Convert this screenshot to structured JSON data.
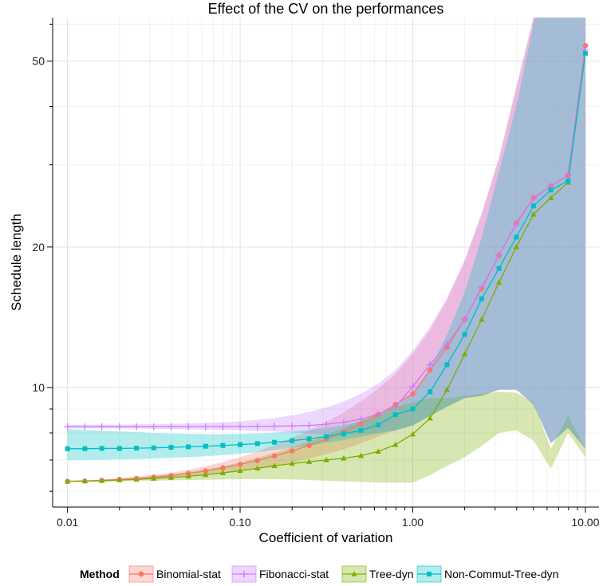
{
  "chart_data": {
    "type": "line",
    "title": "Effect of the CV on the performances",
    "xlabel": "Coefficient of variation",
    "ylabel": "Schedule length",
    "xscale": "log",
    "yscale": "log",
    "xlim": [
      0.0082,
      12.0
    ],
    "ylim": [
      5.55,
      62.0
    ],
    "x_ticks": [
      0.01,
      0.1,
      1.0,
      10.0
    ],
    "x_tick_labels": [
      "0.01",
      "0.10",
      "1.00",
      "10.00"
    ],
    "y_ticks": [
      10,
      20,
      50
    ],
    "y_tick_labels": [
      "10",
      "20",
      "50"
    ],
    "grid": true,
    "legend": {
      "title": "Method",
      "placement": "bottom"
    },
    "x": [
      0.01,
      0.0126,
      0.0158,
      0.02,
      0.0251,
      0.0316,
      0.0398,
      0.0501,
      0.0631,
      0.0794,
      0.1,
      0.126,
      0.158,
      0.2,
      0.251,
      0.316,
      0.398,
      0.501,
      0.631,
      0.794,
      1.0,
      1.26,
      1.58,
      2.0,
      2.51,
      3.16,
      3.98,
      5.01,
      6.31,
      7.94,
      10.0
    ],
    "series": [
      {
        "name": "Binomial-stat",
        "color": "#F8766D",
        "marker": "circle",
        "values": [
          6.3,
          6.31,
          6.33,
          6.36,
          6.39,
          6.43,
          6.48,
          6.55,
          6.63,
          6.73,
          6.85,
          6.98,
          7.14,
          7.32,
          7.52,
          7.76,
          8.04,
          8.37,
          8.76,
          9.2,
          9.7,
          10.9,
          12.2,
          14.0,
          16.3,
          19.2,
          22.5,
          25.5,
          27.0,
          28.5,
          54.0
        ],
        "lower": [
          6.28,
          6.29,
          6.3,
          6.32,
          6.34,
          6.37,
          6.4,
          6.44,
          6.49,
          6.55,
          6.62,
          6.7,
          6.8,
          6.92,
          7.05,
          7.2,
          7.38,
          7.6,
          7.85,
          8.1,
          8.3,
          8.7,
          9.1,
          9.5,
          9.6,
          9.9,
          9.9,
          9.2,
          7.6,
          8.2,
          7.4
        ],
        "upper": [
          6.33,
          6.34,
          6.36,
          6.4,
          6.45,
          6.5,
          6.57,
          6.67,
          6.79,
          6.93,
          7.1,
          7.3,
          7.53,
          7.8,
          8.1,
          8.45,
          8.85,
          9.35,
          9.95,
          10.7,
          11.8,
          13.3,
          15.4,
          18.6,
          23.5,
          31.0,
          44.0,
          62.0,
          80.0,
          95.0,
          110.0
        ]
      },
      {
        "name": "Fibonacci-stat",
        "color": "#C77CFF",
        "marker": "plus",
        "values": [
          8.25,
          8.25,
          8.25,
          8.25,
          8.25,
          8.25,
          8.25,
          8.25,
          8.25,
          8.25,
          8.26,
          8.26,
          8.27,
          8.28,
          8.3,
          8.35,
          8.43,
          8.56,
          8.78,
          9.1,
          10.05,
          11.2,
          12.4,
          14.0,
          16.4,
          19.2,
          22.4,
          25.4,
          27.0,
          28.5,
          53.0
        ],
        "lower": [
          8.18,
          8.18,
          8.18,
          8.17,
          8.17,
          8.16,
          8.15,
          8.14,
          8.13,
          8.12,
          8.1,
          8.08,
          8.05,
          8.02,
          7.98,
          7.93,
          7.92,
          7.96,
          8.0,
          8.1,
          8.3,
          8.7,
          9.1,
          9.5,
          9.6,
          9.9,
          9.9,
          9.2,
          7.6,
          8.2,
          7.4
        ],
        "upper": [
          8.32,
          8.32,
          8.33,
          8.33,
          8.34,
          8.35,
          8.36,
          8.38,
          8.4,
          8.43,
          8.47,
          8.53,
          8.61,
          8.72,
          8.87,
          9.07,
          9.34,
          9.7,
          10.2,
          10.9,
          12.0,
          13.5,
          15.6,
          18.8,
          23.7,
          31.0,
          44.0,
          62.0,
          80.0,
          95.0,
          110.0
        ]
      },
      {
        "name": "Tree-dyn",
        "color": "#7CAE00",
        "marker": "triangle",
        "values": [
          6.3,
          6.31,
          6.32,
          6.34,
          6.36,
          6.39,
          6.42,
          6.46,
          6.51,
          6.57,
          6.64,
          6.72,
          6.8,
          6.88,
          6.94,
          7.0,
          7.06,
          7.15,
          7.3,
          7.55,
          7.95,
          8.6,
          9.9,
          11.8,
          14.0,
          16.8,
          20.0,
          23.5,
          25.5,
          27.5,
          52.0
        ],
        "lower": [
          6.28,
          6.28,
          6.29,
          6.3,
          6.31,
          6.32,
          6.33,
          6.34,
          6.35,
          6.36,
          6.37,
          6.37,
          6.37,
          6.36,
          6.34,
          6.32,
          6.3,
          6.28,
          6.26,
          6.26,
          6.26,
          6.5,
          6.8,
          7.1,
          7.5,
          8.0,
          8.1,
          7.7,
          6.7,
          8.0,
          7.1
        ],
        "upper": [
          6.32,
          6.33,
          6.35,
          6.38,
          6.42,
          6.47,
          6.53,
          6.6,
          6.69,
          6.79,
          6.92,
          7.07,
          7.25,
          7.45,
          7.67,
          7.92,
          8.2,
          8.5,
          8.8,
          9.1,
          9.3,
          9.5,
          9.5,
          9.6,
          9.7,
          9.8,
          9.75,
          9.3,
          7.4,
          8.7,
          7.4
        ]
      },
      {
        "name": "Non-Commut-Tree-dyn",
        "color": "#00BFC4",
        "marker": "square",
        "values": [
          7.4,
          7.4,
          7.41,
          7.41,
          7.42,
          7.43,
          7.45,
          7.47,
          7.49,
          7.52,
          7.55,
          7.59,
          7.64,
          7.7,
          7.77,
          7.86,
          7.96,
          8.1,
          8.32,
          8.75,
          9.0,
          9.8,
          11.2,
          13.0,
          15.5,
          18.0,
          21.0,
          24.5,
          26.5,
          27.7,
          52.0
        ],
        "lower": [
          7.0,
          7.0,
          7.01,
          7.02,
          7.03,
          7.05,
          7.07,
          7.1,
          7.13,
          7.17,
          7.22,
          7.28,
          7.35,
          7.43,
          7.52,
          7.62,
          7.72,
          7.85,
          7.98,
          8.1,
          8.3,
          8.7,
          9.1,
          9.5,
          9.6,
          9.9,
          9.9,
          9.2,
          7.6,
          8.2,
          7.4
        ],
        "upper": [
          8.15,
          8.12,
          8.09,
          8.06,
          8.03,
          8.0,
          7.98,
          7.96,
          7.95,
          7.95,
          7.96,
          7.98,
          8.01,
          8.06,
          8.12,
          8.2,
          8.32,
          8.48,
          8.7,
          9.1,
          9.7,
          11.0,
          13.0,
          16.0,
          21.0,
          29.0,
          40.0,
          60.0,
          80.0,
          95.0,
          110.0
        ]
      }
    ]
  }
}
